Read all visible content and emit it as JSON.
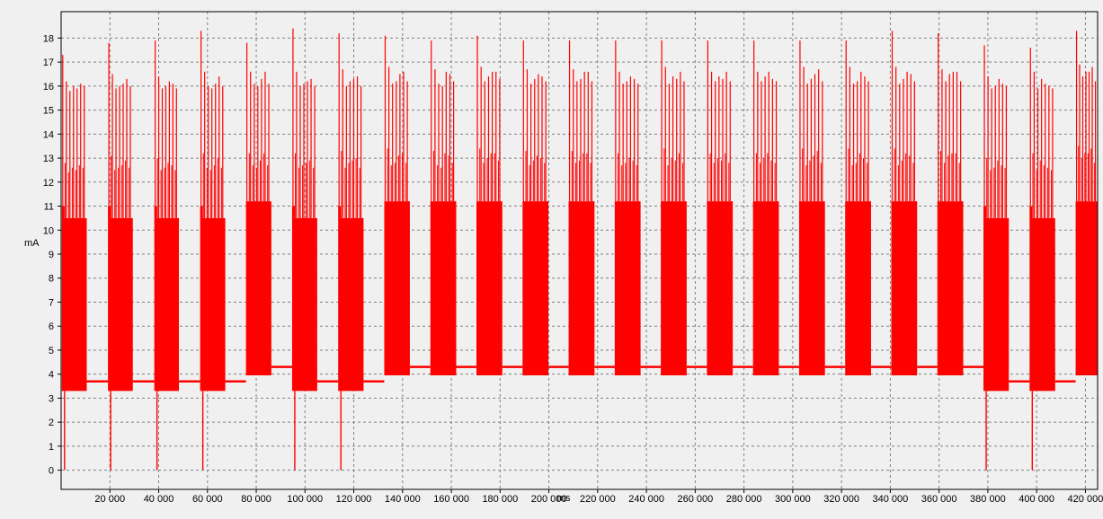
{
  "chart_data": {
    "type": "line",
    "xlabel": "ms",
    "ylabel": "mA",
    "xlim": [
      0,
      425000
    ],
    "ylim": [
      -0.8,
      19.1
    ],
    "x_ticks": [
      20000,
      40000,
      60000,
      80000,
      100000,
      120000,
      140000,
      160000,
      180000,
      200000,
      220000,
      240000,
      260000,
      280000,
      300000,
      320000,
      340000,
      360000,
      380000,
      400000,
      420000
    ],
    "x_tick_labels": [
      "20 000",
      "40 000",
      "60 000",
      "80 000",
      "100 000",
      "120 000",
      "140 000",
      "160 000",
      "180 000",
      "200 000",
      "220 000",
      "240 000",
      "260 000",
      "280 000",
      "300 000",
      "320 000",
      "340 000",
      "360 000",
      "380 000",
      "400 000",
      "420 000"
    ],
    "y_ticks": [
      0,
      1,
      2,
      3,
      4,
      5,
      6,
      7,
      8,
      9,
      10,
      11,
      12,
      13,
      14,
      15,
      16,
      17,
      18
    ],
    "y_tick_labels": [
      "0",
      "1",
      "2",
      "3",
      "4",
      "5",
      "6",
      "7",
      "8",
      "9",
      "10",
      "11",
      "12",
      "13",
      "14",
      "15",
      "16",
      "17",
      "18"
    ],
    "grid": true,
    "line_color": "#ff0000",
    "background_color": "#f0f0f0",
    "grid_color": "#808080",
    "series": [
      {
        "bursts": [
          {
            "start": 300,
            "end": 10500,
            "top": 10.5,
            "bottom": 3.3,
            "high": 11.0,
            "baseline_after": 3.7,
            "spikes": [
              17.3,
              16.2,
              15.8,
              16.0,
              15.9,
              16.1,
              16.0
            ],
            "dropout": true
          },
          {
            "start": 19200,
            "end": 29400,
            "top": 10.5,
            "bottom": 3.3,
            "high": 11.0,
            "baseline_after": 3.7,
            "spikes": [
              17.8,
              16.5,
              15.9,
              16.0,
              16.1,
              16.3,
              16.0
            ],
            "dropout": true
          },
          {
            "start": 38200,
            "end": 48300,
            "top": 10.5,
            "bottom": 3.3,
            "high": 11.0,
            "baseline_after": 3.7,
            "spikes": [
              17.9,
              16.4,
              15.9,
              16.0,
              16.2,
              16.1,
              15.9
            ],
            "dropout": true
          },
          {
            "start": 57000,
            "end": 67300,
            "top": 10.5,
            "bottom": 3.3,
            "high": 11.0,
            "baseline_after": 3.7,
            "spikes": [
              18.3,
              16.6,
              16.0,
              15.9,
              16.1,
              16.4,
              16.0
            ],
            "dropout": true
          },
          {
            "start": 75800,
            "end": 86200,
            "top": 11.2,
            "bottom": 3.95,
            "high": 11.2,
            "baseline_after": 4.3,
            "spikes": [
              17.8,
              16.6,
              16.1,
              16.0,
              16.3,
              16.6,
              16.1
            ],
            "dropout": false
          },
          {
            "start": 94700,
            "end": 105000,
            "top": 10.5,
            "bottom": 3.3,
            "high": 11.0,
            "baseline_after": 3.7,
            "spikes": [
              18.4,
              16.6,
              16.0,
              16.1,
              16.2,
              16.3,
              16.0
            ],
            "dropout": true
          },
          {
            "start": 113600,
            "end": 124000,
            "top": 10.5,
            "bottom": 3.3,
            "high": 11.0,
            "baseline_after": 3.7,
            "spikes": [
              18.2,
              16.7,
              16.0,
              16.2,
              16.3,
              16.4,
              16.0
            ],
            "dropout": true
          },
          {
            "start": 132500,
            "end": 143000,
            "top": 11.2,
            "bottom": 3.95,
            "high": 11.2,
            "baseline_after": 4.3,
            "spikes": [
              18.1,
              16.8,
              16.1,
              16.2,
              16.5,
              16.6,
              16.2
            ],
            "dropout": false
          },
          {
            "start": 151400,
            "end": 162000,
            "top": 11.2,
            "bottom": 3.95,
            "high": 11.2,
            "baseline_after": 4.3,
            "spikes": [
              17.9,
              16.7,
              16.1,
              16.0,
              16.6,
              16.5,
              16.2
            ],
            "dropout": false
          },
          {
            "start": 170300,
            "end": 180900,
            "top": 11.2,
            "bottom": 3.95,
            "high": 11.2,
            "baseline_after": 4.3,
            "spikes": [
              18.1,
              16.8,
              16.2,
              16.4,
              16.6,
              16.6,
              16.3
            ],
            "dropout": false
          },
          {
            "start": 189200,
            "end": 199800,
            "top": 11.2,
            "bottom": 3.95,
            "high": 11.2,
            "baseline_after": 4.3,
            "spikes": [
              17.9,
              16.7,
              16.1,
              16.3,
              16.5,
              16.4,
              16.2
            ],
            "dropout": false
          },
          {
            "start": 208100,
            "end": 218700,
            "top": 11.2,
            "bottom": 3.95,
            "high": 11.2,
            "baseline_after": 4.3,
            "spikes": [
              17.9,
              16.7,
              16.2,
              16.3,
              16.6,
              16.6,
              16.2
            ],
            "dropout": false
          },
          {
            "start": 227000,
            "end": 237600,
            "top": 11.2,
            "bottom": 3.95,
            "high": 11.2,
            "baseline_after": 4.3,
            "spikes": [
              17.9,
              16.6,
              16.1,
              16.2,
              16.4,
              16.3,
              16.1
            ],
            "dropout": false
          },
          {
            "start": 245900,
            "end": 256500,
            "top": 11.2,
            "bottom": 3.95,
            "high": 11.2,
            "baseline_after": 4.3,
            "spikes": [
              17.9,
              16.8,
              16.1,
              16.4,
              16.3,
              16.6,
              16.2
            ],
            "dropout": false
          },
          {
            "start": 264800,
            "end": 275400,
            "top": 11.2,
            "bottom": 3.95,
            "high": 11.2,
            "baseline_after": 4.3,
            "spikes": [
              17.9,
              16.6,
              16.2,
              16.4,
              16.3,
              16.6,
              16.2
            ],
            "dropout": false
          },
          {
            "start": 283700,
            "end": 294300,
            "top": 11.2,
            "bottom": 3.95,
            "high": 11.2,
            "baseline_after": 4.3,
            "spikes": [
              17.9,
              16.6,
              16.2,
              16.4,
              16.6,
              16.3,
              16.2
            ],
            "dropout": false
          },
          {
            "start": 302600,
            "end": 313200,
            "top": 11.2,
            "bottom": 3.95,
            "high": 11.2,
            "baseline_after": 4.3,
            "spikes": [
              17.9,
              16.8,
              16.1,
              16.3,
              16.5,
              16.7,
              16.2
            ],
            "dropout": false
          },
          {
            "start": 321500,
            "end": 332100,
            "top": 11.2,
            "bottom": 3.95,
            "high": 11.2,
            "baseline_after": 4.3,
            "spikes": [
              17.9,
              16.8,
              16.1,
              16.2,
              16.6,
              16.4,
              16.2
            ],
            "dropout": false
          },
          {
            "start": 340400,
            "end": 351000,
            "top": 11.2,
            "bottom": 3.95,
            "high": 11.2,
            "baseline_after": 4.3,
            "spikes": [
              18.3,
              16.8,
              16.1,
              16.3,
              16.6,
              16.5,
              16.2
            ],
            "dropout": false
          },
          {
            "start": 359300,
            "end": 369900,
            "top": 11.2,
            "bottom": 3.95,
            "high": 11.2,
            "baseline_after": 4.3,
            "spikes": [
              18.2,
              16.7,
              16.2,
              16.5,
              16.6,
              16.6,
              16.2
            ],
            "dropout": false
          },
          {
            "start": 378200,
            "end": 388600,
            "top": 10.5,
            "bottom": 3.3,
            "high": 11.0,
            "baseline_after": 3.7,
            "spikes": [
              17.7,
              16.4,
              15.9,
              16.0,
              16.3,
              16.1,
              16.0
            ],
            "dropout": true
          },
          {
            "start": 397100,
            "end": 407600,
            "top": 10.5,
            "bottom": 3.3,
            "high": 11.0,
            "baseline_after": 3.7,
            "spikes": [
              17.6,
              16.6,
              15.9,
              16.3,
              16.1,
              16.0,
              15.9
            ],
            "dropout": true
          },
          {
            "start": 416000,
            "end": 425000,
            "top": 11.2,
            "bottom": 3.95,
            "high": 11.2,
            "baseline_after": 4.3,
            "spikes": [
              18.3,
              16.9,
              16.4,
              16.6,
              16.6,
              16.8,
              16.2
            ],
            "dropout": false
          }
        ]
      }
    ]
  }
}
